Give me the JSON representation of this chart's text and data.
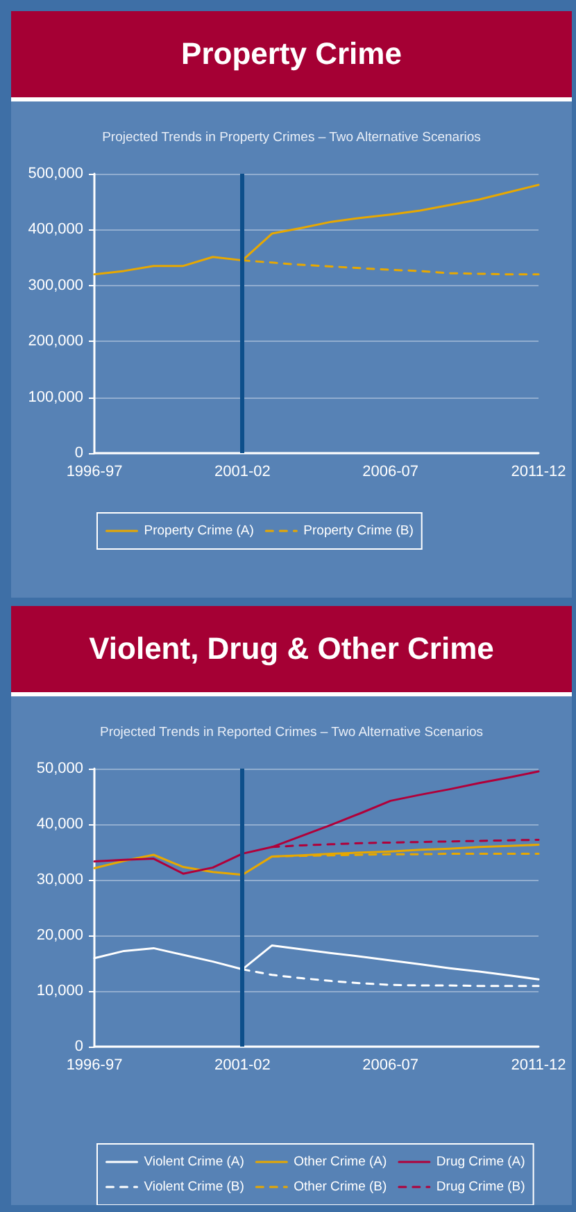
{
  "chart_data": [
    {
      "type": "line",
      "title": "Property Crime",
      "subtitle": "Projected Trends in Property Crimes – Two Alternative Scenarios",
      "categories": [
        "1996-97",
        null,
        null,
        null,
        null,
        "2001-02",
        null,
        null,
        null,
        null,
        "2006-07",
        null,
        null,
        null,
        null,
        "2011-12"
      ],
      "ylim": [
        0,
        500000
      ],
      "yticks": [
        0,
        {
          "value": 100000,
          "label": "100,000"
        },
        {
          "value": 200000,
          "label": "200,000"
        },
        {
          "value": 300000,
          "label": "300,000"
        },
        {
          "value": 400000,
          "label": "400,000"
        },
        {
          "value": 500000,
          "label": "500,000"
        }
      ],
      "grid": "y",
      "legend": "bottom",
      "marker": "none",
      "ref_lines": [
        {
          "axis": "x",
          "value": "2001-02",
          "color": "#0d4f8b"
        }
      ],
      "series": [
        {
          "name": "Property Crime (A)",
          "color": "#e8a800",
          "line_style": "solid",
          "values": [
            320000,
            326000,
            335000,
            335000,
            351000,
            345000,
            393000,
            403000,
            414000,
            421000,
            427000,
            434000,
            444000,
            454000,
            467000,
            480000
          ]
        },
        {
          "name": "Property Crime (B)",
          "color": "#e8a800",
          "line_style": "dashed",
          "values": [
            null,
            null,
            null,
            null,
            null,
            345000,
            341000,
            337000,
            334000,
            331000,
            328000,
            326000,
            322000,
            321000,
            320000,
            320000
          ]
        }
      ]
    },
    {
      "type": "line",
      "title": "Violent, Drug & Other Crime",
      "subtitle": "Projected Trends in Reported Crimes – Two Alternative Scenarios",
      "categories": [
        "1996-97",
        null,
        null,
        null,
        null,
        "2001-02",
        null,
        null,
        null,
        null,
        "2006-07",
        null,
        null,
        null,
        null,
        "2011-12"
      ],
      "ylim": [
        0,
        50000
      ],
      "yticks": [
        0,
        {
          "value": 10000,
          "label": "10,000"
        },
        {
          "value": 20000,
          "label": "20,000"
        },
        {
          "value": 30000,
          "label": "30,000"
        },
        {
          "value": 40000,
          "label": "40,000"
        },
        {
          "value": 50000,
          "label": "50,000"
        }
      ],
      "grid": "y",
      "legend": "bottom",
      "marker": "none",
      "ref_lines": [
        {
          "axis": "x",
          "value": "2001-02",
          "color": "#0d4f8b"
        }
      ],
      "series": [
        {
          "name": "Violent Crime (A)",
          "color": "#ffffff",
          "line_style": "solid",
          "values": [
            15900,
            17200,
            17700,
            16500,
            15300,
            13900,
            18200,
            17500,
            16800,
            16200,
            15500,
            14800,
            14100,
            13500,
            12800,
            12100
          ]
        },
        {
          "name": "Other Crime (A)",
          "color": "#e8a800",
          "line_style": "solid",
          "values": [
            32100,
            33400,
            34500,
            32300,
            31400,
            30900,
            34200,
            34400,
            34700,
            34900,
            35100,
            35400,
            35600,
            35900,
            36100,
            36300
          ]
        },
        {
          "name": "Drug Crime (A)",
          "color": "#b0003a",
          "line_style": "solid",
          "values": [
            33300,
            33600,
            33800,
            31100,
            32200,
            34700,
            35900,
            37900,
            39900,
            42000,
            44200,
            45300,
            46300,
            47400,
            48400,
            49500
          ]
        },
        {
          "name": "Violent Crime (B)",
          "color": "#ffffff",
          "line_style": "dashed",
          "values": [
            null,
            null,
            null,
            null,
            null,
            13900,
            12900,
            12300,
            11800,
            11400,
            11100,
            11000,
            11000,
            10900,
            10900,
            10900
          ]
        },
        {
          "name": "Other Crime (B)",
          "color": "#e8a800",
          "line_style": "dashed",
          "values": [
            null,
            null,
            null,
            null,
            null,
            null,
            34200,
            34300,
            34400,
            34500,
            34600,
            34600,
            34700,
            34700,
            34700,
            34700
          ]
        },
        {
          "name": "Drug Crime (B)",
          "color": "#b0003a",
          "line_style": "dashed",
          "values": [
            null,
            null,
            null,
            null,
            null,
            null,
            35900,
            36200,
            36400,
            36600,
            36700,
            36800,
            36900,
            37000,
            37100,
            37200
          ]
        }
      ]
    }
  ]
}
